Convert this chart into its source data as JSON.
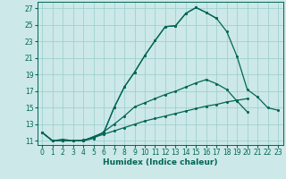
{
  "xlabel": "Humidex (Indice chaleur)",
  "bg_color": "#cce8e8",
  "grid_color": "#99cccc",
  "line_color": "#006655",
  "xlim": [
    -0.5,
    23.5
  ],
  "ylim": [
    10.5,
    27.8
  ],
  "xticks": [
    0,
    1,
    2,
    3,
    4,
    5,
    6,
    7,
    8,
    9,
    10,
    11,
    12,
    13,
    14,
    15,
    16,
    17,
    18,
    19,
    20,
    21,
    22,
    23
  ],
  "yticks": [
    11,
    13,
    15,
    17,
    19,
    21,
    23,
    25,
    27
  ],
  "curve_main_x": [
    0,
    1,
    2,
    3,
    4,
    5,
    6,
    7,
    8,
    9,
    10,
    11,
    12,
    13,
    14,
    15,
    16,
    17,
    18,
    19,
    20,
    21,
    22,
    23
  ],
  "curve_main_y": [
    12,
    11,
    11,
    11,
    11,
    11.5,
    12,
    15,
    17.5,
    19.3,
    21.3,
    23.1,
    24.8,
    24.9,
    26.4,
    27.1,
    26.5,
    25.8,
    24.2,
    21.2,
    17.2,
    16.3,
    15.0,
    14.7
  ],
  "curve_stop_x": [
    0,
    1,
    2,
    3,
    4,
    5,
    6,
    7,
    8,
    9,
    10,
    11,
    12,
    13,
    14,
    15,
    16,
    17
  ],
  "curve_stop_y": [
    12,
    11,
    11,
    11,
    11,
    11.5,
    12,
    15,
    17.5,
    19.3,
    21.3,
    23.1,
    24.8,
    24.9,
    26.4,
    27.1,
    26.5,
    25.8
  ],
  "curve_mid_x": [
    0,
    1,
    2,
    3,
    4,
    5,
    6,
    7,
    8,
    9,
    10,
    11,
    12,
    13,
    14,
    15,
    16,
    17,
    18,
    19,
    20
  ],
  "curve_mid_y": [
    12,
    11,
    11,
    11,
    11,
    11.3,
    12.1,
    13.0,
    14.0,
    15.1,
    15.6,
    16.1,
    16.6,
    17.0,
    17.5,
    18.0,
    18.4,
    17.9,
    17.2,
    15.8,
    14.5
  ],
  "curve_bot_x": [
    0,
    1,
    2,
    3,
    4,
    5,
    6,
    7,
    8,
    9,
    10,
    11,
    12,
    13,
    14,
    15,
    16,
    17,
    18,
    19,
    20,
    21,
    22,
    23
  ],
  "curve_bot_y": [
    12,
    11,
    11.2,
    11.0,
    11.1,
    11.4,
    11.8,
    12.2,
    12.6,
    13.0,
    13.4,
    13.7,
    14.0,
    14.3,
    14.6,
    14.9,
    15.2,
    15.4,
    15.7,
    15.9,
    16.1,
    null,
    null,
    null
  ]
}
